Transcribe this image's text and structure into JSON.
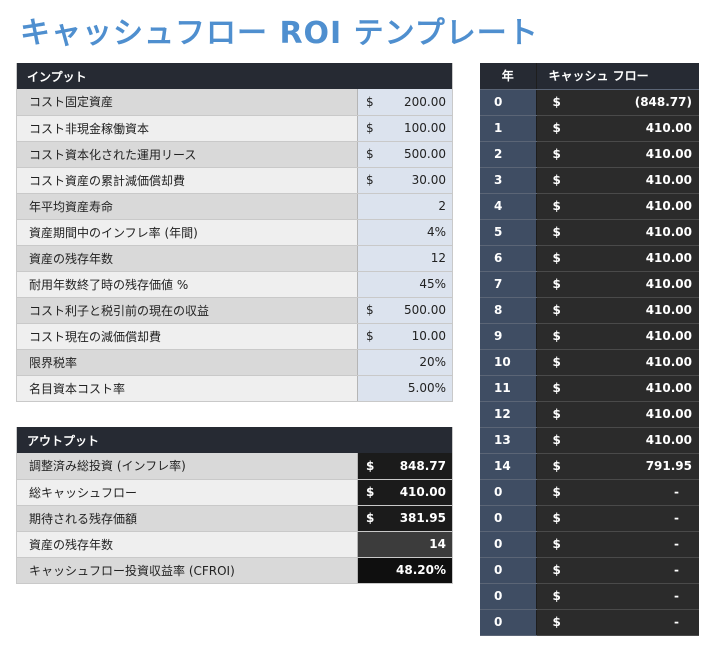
{
  "page": {
    "title": "キャッシュフロー ROI テンプレート"
  },
  "input": {
    "header": "インプット",
    "rows": [
      {
        "label": "コスト固定資産",
        "currency": "$",
        "value": "200.00"
      },
      {
        "label": "コスト非現金稼働資本",
        "currency": "$",
        "value": "100.00"
      },
      {
        "label": "コスト資本化された運用リース",
        "currency": "$",
        "value": "500.00"
      },
      {
        "label": "コスト資産の累計減価償却費",
        "currency": "$",
        "value": "30.00"
      },
      {
        "label": "年平均資産寿命",
        "currency": "",
        "value": "2"
      },
      {
        "label": "資産期間中のインフレ率 (年間)",
        "currency": "",
        "value": "4%"
      },
      {
        "label": "資産の残存年数",
        "currency": "",
        "value": "12"
      },
      {
        "label": "耐用年数終了時の残存価値 %",
        "currency": "",
        "value": "45%"
      },
      {
        "label": "コスト利子と税引前の現在の収益",
        "currency": "$",
        "value": "500.00"
      },
      {
        "label": "コスト現在の減価償却費",
        "currency": "$",
        "value": "10.00"
      },
      {
        "label": "限界税率",
        "currency": "",
        "value": "20%"
      },
      {
        "label": "名目資本コスト率",
        "currency": "",
        "value": "5.00%"
      }
    ]
  },
  "output": {
    "header": "アウトプット",
    "rows": [
      {
        "label": "調整済み総投資 (インフレ率)",
        "currency": "$",
        "value": "848.77"
      },
      {
        "label": "総キャッシュフロー",
        "currency": "$",
        "value": "410.00"
      },
      {
        "label": "期待される残存価額",
        "currency": "$",
        "value": "381.95"
      },
      {
        "label": "資産の残存年数",
        "currency": "",
        "value": "14"
      },
      {
        "label": "キャッシュフロー投資収益率 (CFROI)",
        "currency": "",
        "value": "48.20%"
      }
    ]
  },
  "cashflow": {
    "year_header": "年",
    "cf_header": "キャッシュ フロー",
    "rows": [
      {
        "year": "0",
        "currency": "$",
        "value": "(848.77)"
      },
      {
        "year": "1",
        "currency": "$",
        "value": "410.00"
      },
      {
        "year": "2",
        "currency": "$",
        "value": "410.00"
      },
      {
        "year": "3",
        "currency": "$",
        "value": "410.00"
      },
      {
        "year": "4",
        "currency": "$",
        "value": "410.00"
      },
      {
        "year": "5",
        "currency": "$",
        "value": "410.00"
      },
      {
        "year": "6",
        "currency": "$",
        "value": "410.00"
      },
      {
        "year": "7",
        "currency": "$",
        "value": "410.00"
      },
      {
        "year": "8",
        "currency": "$",
        "value": "410.00"
      },
      {
        "year": "9",
        "currency": "$",
        "value": "410.00"
      },
      {
        "year": "10",
        "currency": "$",
        "value": "410.00"
      },
      {
        "year": "11",
        "currency": "$",
        "value": "410.00"
      },
      {
        "year": "12",
        "currency": "$",
        "value": "410.00"
      },
      {
        "year": "13",
        "currency": "$",
        "value": "410.00"
      },
      {
        "year": "14",
        "currency": "$",
        "value": "791.95"
      },
      {
        "year": "0",
        "currency": "$",
        "value": "-"
      },
      {
        "year": "0",
        "currency": "$",
        "value": "-"
      },
      {
        "year": "0",
        "currency": "$",
        "value": "-"
      },
      {
        "year": "0",
        "currency": "$",
        "value": "-"
      },
      {
        "year": "0",
        "currency": "$",
        "value": "-"
      },
      {
        "year": "0",
        "currency": "$",
        "value": "-"
      }
    ]
  }
}
